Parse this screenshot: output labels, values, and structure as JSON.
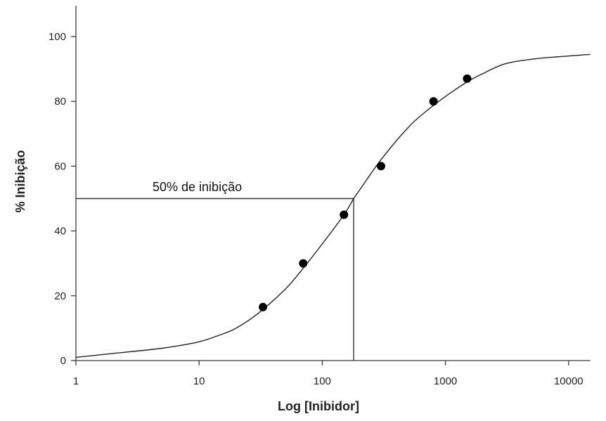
{
  "chart_data": {
    "type": "scatter",
    "title": "",
    "xlabel": "Log [Inibidor]",
    "ylabel": "% Inibição",
    "xscale": "log",
    "xlim": [
      1,
      15000
    ],
    "ylim": [
      0,
      110
    ],
    "xticks": [
      1,
      10,
      100,
      1000,
      10000
    ],
    "xtick_labels": [
      "1",
      "10",
      "100",
      "1000",
      "10000"
    ],
    "yticks": [
      0,
      20,
      40,
      60,
      80,
      100
    ],
    "ytick_labels": [
      "0",
      "20",
      "40",
      "60",
      "80",
      "100"
    ],
    "grid": false,
    "points": {
      "x": [
        33,
        70,
        150,
        300,
        800,
        1500
      ],
      "y": [
        16.5,
        30,
        45,
        60,
        80,
        87
      ]
    },
    "fit_curve": {
      "x": [
        1,
        2,
        5,
        10,
        15,
        20,
        30,
        50,
        70,
        100,
        150,
        180,
        200,
        300,
        500,
        700,
        1000,
        1500,
        2000,
        3000,
        5000,
        10000,
        15000
      ],
      "y": [
        1,
        2.2,
        3.8,
        5.8,
        8,
        10,
        14.5,
        22,
        28.5,
        36,
        45,
        50,
        52.5,
        62,
        72,
        77,
        81.5,
        86,
        88.5,
        91.5,
        93,
        94,
        94.5
      ]
    },
    "reference": {
      "label": "50% de inibição",
      "x": 180,
      "y": 50
    }
  }
}
